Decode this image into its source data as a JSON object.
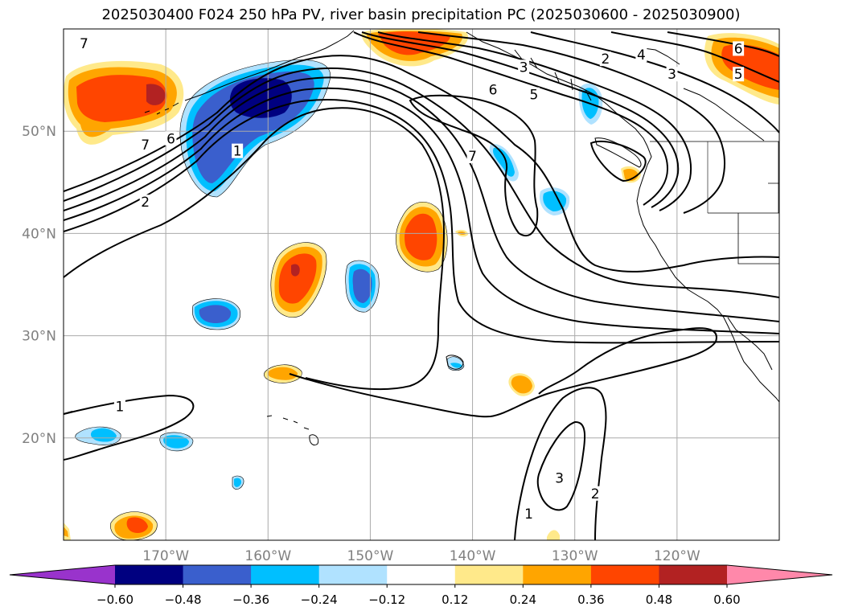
{
  "title": "2025030400 F024 250 hPa PV, river basin precipitation PC (2025030600 - 2025030900)",
  "map": {
    "lon_range": [
      -180,
      -110
    ],
    "lat_range": [
      10,
      60
    ],
    "lon_ticks": [
      {
        "lon": -170,
        "label": "170°W"
      },
      {
        "lon": -160,
        "label": "160°W"
      },
      {
        "lon": -150,
        "label": "150°W"
      },
      {
        "lon": -140,
        "label": "140°W"
      },
      {
        "lon": -130,
        "label": "130°W"
      },
      {
        "lon": -120,
        "label": "120°W"
      }
    ],
    "lat_ticks": [
      {
        "lat": 50,
        "label": "50°N"
      },
      {
        "lat": 40,
        "label": "40°N"
      },
      {
        "lat": 30,
        "label": "30°N"
      },
      {
        "lat": 20,
        "label": "20°N"
      }
    ],
    "gridlines": true,
    "pv_contour_labels": [
      {
        "text": "7",
        "lon": -178,
        "lat": 58.5
      },
      {
        "text": "7",
        "lon": -172,
        "lat": 48.6
      },
      {
        "text": "6",
        "lon": -169.5,
        "lat": 49.2
      },
      {
        "text": "2",
        "lon": -172,
        "lat": 43
      },
      {
        "text": "1",
        "lon": -163,
        "lat": 48
      },
      {
        "text": "3",
        "lon": -135,
        "lat": 56.2
      },
      {
        "text": "6",
        "lon": -138,
        "lat": 54
      },
      {
        "text": "5",
        "lon": -134,
        "lat": 53.5
      },
      {
        "text": "7",
        "lon": -140,
        "lat": 47.5
      },
      {
        "text": "2",
        "lon": -127,
        "lat": 57
      },
      {
        "text": "4",
        "lon": -123.5,
        "lat": 57.4
      },
      {
        "text": "3",
        "lon": -120.5,
        "lat": 55.5
      },
      {
        "text": "6",
        "lon": -114,
        "lat": 58
      },
      {
        "text": "5",
        "lon": -114,
        "lat": 55.5
      },
      {
        "text": "1",
        "lon": -174.5,
        "lat": 23
      },
      {
        "text": "3",
        "lon": -131.5,
        "lat": 16
      },
      {
        "text": "1",
        "lon": -134.5,
        "lat": 12.5
      },
      {
        "text": "2",
        "lon": -128,
        "lat": 14.5
      }
    ]
  },
  "colorbar": {
    "colors": [
      "#9933cc",
      "#000080",
      "#3a5fcd",
      "#00bfff",
      "#b0e2ff",
      "#ffffff",
      "#ffe98a",
      "#ffa500",
      "#ff4500",
      "#b22222",
      "#ff88aa"
    ],
    "tick_labels": [
      "−0.60",
      "−0.48",
      "−0.36",
      "−0.24",
      "−0.12",
      "0.12",
      "0.24",
      "0.36",
      "0.48",
      "0.60"
    ]
  }
}
